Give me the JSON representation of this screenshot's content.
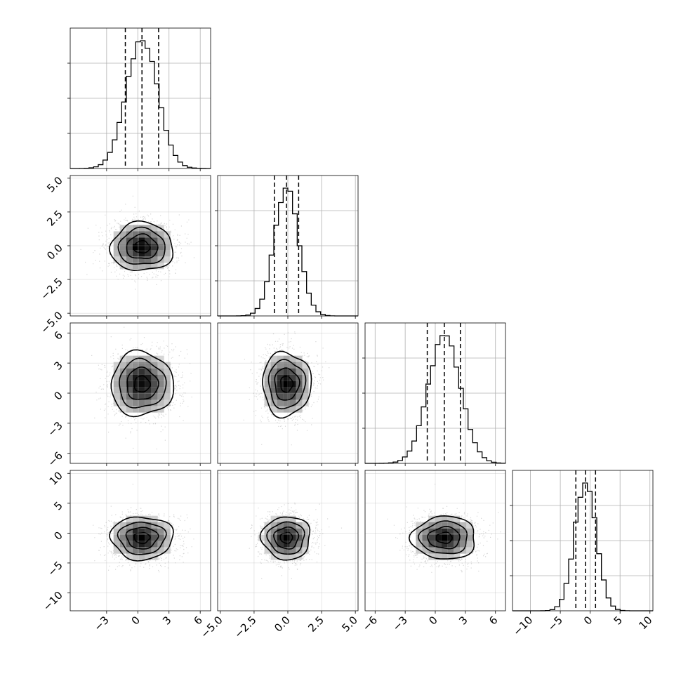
{
  "chart_data": {
    "type": "corner",
    "parameters": [
      {
        "mean": 0.4,
        "sd": 1.5,
        "quantiles": [
          -1.2,
          0.4,
          2.0
        ],
        "range": [
          -6.5,
          7.0
        ],
        "ticks": [
          -3,
          0,
          3,
          6
        ],
        "tick_labels": [
          "−3",
          "0",
          "3",
          "6"
        ],
        "hist_bins": 30
      },
      {
        "mean": -0.1,
        "sd": 0.9,
        "quantiles": [
          -1.0,
          -0.1,
          0.8
        ],
        "range": [
          -5.2,
          5.2
        ],
        "ticks": [
          -5.0,
          -2.5,
          0.0,
          2.5,
          5.0
        ],
        "tick_labels": [
          "−5.0",
          "−2.5",
          "0.0",
          "2.5",
          "5.0"
        ],
        "hist_bins": 30
      },
      {
        "mean": 0.9,
        "sd": 1.6,
        "quantiles": [
          -0.8,
          0.9,
          2.5
        ],
        "range": [
          -7.0,
          7.0
        ],
        "ticks": [
          -6,
          -3,
          0,
          3,
          6
        ],
        "tick_labels": [
          "−6",
          "−3",
          "0",
          "3",
          "6"
        ],
        "hist_bins": 30
      },
      {
        "mean": -0.8,
        "sd": 1.8,
        "quantiles": [
          -2.4,
          -0.8,
          0.9
        ],
        "range": [
          -13.0,
          10.5
        ],
        "ticks": [
          -10,
          -5,
          0,
          5,
          10
        ],
        "tick_labels": [
          "−10",
          "−5",
          "0",
          "5",
          "10"
        ],
        "hist_bins": 30
      }
    ],
    "panels_2d": [
      {
        "row": 1,
        "col": 0,
        "center": [
          0.4,
          -0.1
        ]
      },
      {
        "row": 2,
        "col": 0,
        "center": [
          0.4,
          0.9
        ]
      },
      {
        "row": 2,
        "col": 1,
        "center": [
          -0.1,
          0.9
        ]
      },
      {
        "row": 3,
        "col": 0,
        "center": [
          0.4,
          -0.8
        ]
      },
      {
        "row": 3,
        "col": 1,
        "center": [
          -0.1,
          -0.8
        ]
      },
      {
        "row": 3,
        "col": 2,
        "center": [
          0.9,
          -0.8
        ]
      }
    ],
    "contour_levels_sigma": [
      0.5,
      1.0,
      1.5,
      2.0
    ],
    "grid": true,
    "title": "",
    "labels": [
      "",
      "",
      "",
      ""
    ]
  }
}
